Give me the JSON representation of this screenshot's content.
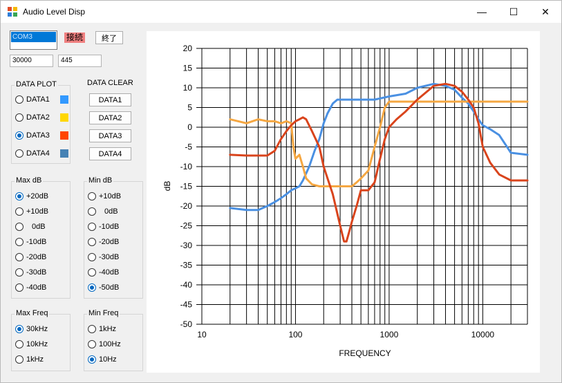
{
  "window": {
    "title": "Audio Level Disp",
    "minimize_glyph": "—",
    "maximize_glyph": "☐",
    "close_glyph": "✕"
  },
  "toolbar": {
    "port_value": "COM3",
    "status_label": "接続",
    "exit_label": "終了",
    "input1_value": "30000",
    "input2_value": "445"
  },
  "data_plot": {
    "title": "DATA PLOT",
    "items": [
      {
        "label": "DATA1",
        "color": "#3399ff",
        "checked": false
      },
      {
        "label": "DATA2",
        "color": "#ffd700",
        "checked": false
      },
      {
        "label": "DATA3",
        "color": "#ff4500",
        "checked": true
      },
      {
        "label": "DATA4",
        "color": "#4682b4",
        "checked": false
      }
    ]
  },
  "data_clear": {
    "title": "DATA CLEAR",
    "buttons": [
      "DATA1",
      "DATA2",
      "DATA3",
      "DATA4"
    ]
  },
  "max_db": {
    "title": "Max dB",
    "options": [
      "+20dB",
      "+10dB",
      "0dB",
      "-10dB",
      "-20dB",
      "-30dB",
      "-40dB"
    ],
    "selected": 0
  },
  "min_db": {
    "title": "Min dB",
    "options": [
      "+10dB",
      "0dB",
      "-10dB",
      "-20dB",
      "-30dB",
      "-40dB",
      "-50dB"
    ],
    "selected": 6
  },
  "max_freq": {
    "title": "Max Freq",
    "options": [
      "30kHz",
      "10kHz",
      "1kHz"
    ],
    "selected": 0
  },
  "min_freq": {
    "title": "Min Freq",
    "options": [
      "1kHz",
      "100Hz",
      "10Hz"
    ],
    "selected": 2
  },
  "chart_data": {
    "type": "line",
    "xlabel": "FREQUENCY",
    "ylabel": "dB",
    "x_scale": "log",
    "xlim": [
      10,
      30000
    ],
    "ylim": [
      -50,
      20
    ],
    "x_ticks": [
      10,
      100,
      1000,
      10000
    ],
    "x_tick_labels": [
      "10",
      "100",
      "1000",
      "10000"
    ],
    "y_ticks": [
      20,
      15,
      10,
      5,
      0,
      -5,
      -10,
      -15,
      -20,
      -25,
      -30,
      -35,
      -40,
      -45,
      -50
    ],
    "y_tick_labels": [
      "20",
      "15",
      "10",
      "5",
      "0",
      "-5",
      "-10",
      "-15",
      "-20",
      "-25",
      "-30",
      "-35",
      "-40",
      "-45",
      "-50"
    ],
    "grid": true,
    "series": [
      {
        "color": "#4a90e2",
        "x": [
          20,
          30,
          40,
          50,
          60,
          70,
          80,
          90,
          100,
          110,
          120,
          140,
          160,
          180,
          200,
          220,
          250,
          280,
          300,
          350,
          400,
          500,
          600,
          700,
          800,
          1000,
          1500,
          2000,
          3000,
          4000,
          5000,
          6000,
          7000,
          8000,
          9000,
          10000,
          12000,
          15000,
          20000,
          30000
        ],
        "y": [
          -20.5,
          -21,
          -21,
          -20,
          -19,
          -18,
          -17,
          -16,
          -15.5,
          -15,
          -13.5,
          -10,
          -6,
          -3,
          1,
          3.5,
          6,
          7,
          7,
          7,
          7,
          7,
          7,
          7,
          7.3,
          7.8,
          8.5,
          10,
          11,
          10.5,
          9.5,
          7.5,
          6,
          4,
          2,
          0.5,
          -0.5,
          -2,
          -6.5,
          -7
        ]
      },
      {
        "color": "#f5a742",
        "x": [
          20,
          30,
          40,
          50,
          60,
          70,
          80,
          90,
          95,
          100,
          110,
          120,
          130,
          150,
          180,
          200,
          250,
          300,
          350,
          400,
          450,
          500,
          600,
          700,
          800,
          900,
          1000,
          2000,
          5000,
          10000,
          20000,
          30000
        ],
        "y": [
          2,
          1,
          2,
          1.5,
          1.5,
          1,
          1.5,
          1,
          -5,
          -8,
          -7,
          -10,
          -13,
          -14.5,
          -15,
          -15,
          -15,
          -15,
          -15,
          -15,
          -14,
          -13,
          -11,
          -5,
          0,
          5,
          6.5,
          6.5,
          6.5,
          6.5,
          6.5,
          6.5
        ]
      },
      {
        "color": "#d9441c",
        "x": [
          20,
          30,
          40,
          50,
          60,
          70,
          80,
          90,
          100,
          110,
          120,
          130,
          150,
          180,
          200,
          250,
          300,
          330,
          350,
          380,
          400,
          450,
          500,
          600,
          700,
          800,
          900,
          1000,
          1200,
          1500,
          2000,
          3000,
          4000,
          5000,
          6000,
          7000,
          8000,
          9000,
          10000,
          12000,
          15000,
          20000,
          30000
        ],
        "y": [
          -7,
          -7.2,
          -7.2,
          -7.2,
          -6,
          -3,
          -1,
          0.5,
          1.5,
          2,
          2.5,
          2,
          -1,
          -5,
          -10,
          -17,
          -25,
          -29,
          -29,
          -26,
          -24,
          -20,
          -16,
          -16,
          -14,
          -8,
          -3,
          0,
          2,
          4,
          7,
          10.5,
          11,
          10.5,
          9,
          7,
          5,
          1,
          -5,
          -9,
          -12,
          -13.5,
          -13.5
        ]
      }
    ]
  }
}
